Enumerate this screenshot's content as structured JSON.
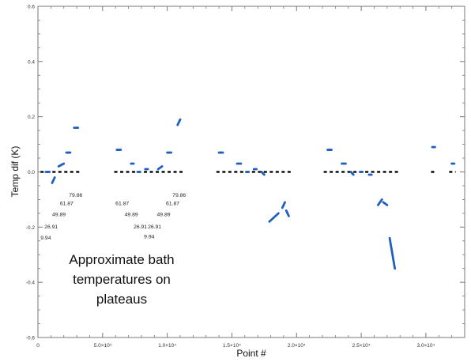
{
  "chart_data": {
    "type": "scatter",
    "title": "",
    "xlabel": "Point #",
    "ylabel": "Temp dif (K)",
    "xlim": [
      0,
      33000
    ],
    "ylim": [
      -0.6,
      0.6
    ],
    "x_ticks": [
      {
        "value": 0,
        "label": "0"
      },
      {
        "value": 5000,
        "label": "5.0×10³"
      },
      {
        "value": 10000,
        "label": "1.0×10⁴"
      },
      {
        "value": 15000,
        "label": "1.5×10⁴"
      },
      {
        "value": 20000,
        "label": "2.0×10⁴"
      },
      {
        "value": 25000,
        "label": "2.5×10⁴"
      },
      {
        "value": 30000,
        "label": "3.0×10⁴"
      }
    ],
    "y_ticks": [
      {
        "value": -0.6,
        "label": "-0.6"
      },
      {
        "value": -0.4,
        "label": "-0.4"
      },
      {
        "value": -0.2,
        "label": "-0.2"
      },
      {
        "value": 0.0,
        "label": "0.0"
      },
      {
        "value": 0.2,
        "label": "0.2"
      },
      {
        "value": 0.4,
        "label": "0.4"
      },
      {
        "value": 0.6,
        "label": "0.6"
      }
    ],
    "grid": false,
    "colors": {
      "blue": "#1f5fbf",
      "black": "#111111",
      "axis": "#777777"
    },
    "series": [
      {
        "color": "#1f5fbf",
        "segments": [
          [
            [
              600,
              0.0
            ],
            [
              900,
              0.0
            ]
          ],
          [
            [
              1100,
              -0.04
            ],
            [
              1300,
              -0.02
            ]
          ],
          [
            [
              1600,
              0.02
            ],
            [
              2000,
              0.03
            ]
          ],
          [
            [
              2200,
              0.07
            ],
            [
              2500,
              0.07
            ]
          ],
          [
            [
              2800,
              0.16
            ],
            [
              3100,
              0.16
            ]
          ],
          [
            [
              6100,
              0.08
            ],
            [
              6400,
              0.08
            ]
          ],
          [
            [
              7200,
              0.03
            ],
            [
              7400,
              0.03
            ]
          ],
          [
            [
              7700,
              0.0
            ],
            [
              7900,
              0.0
            ]
          ],
          [
            [
              8300,
              0.01
            ],
            [
              8500,
              0.01
            ]
          ],
          [
            [
              9300,
              0.01
            ],
            [
              9600,
              0.02
            ]
          ],
          [
            [
              10000,
              0.07
            ],
            [
              10300,
              0.07
            ]
          ],
          [
            [
              10800,
              0.17
            ],
            [
              11000,
              0.19
            ]
          ],
          [
            [
              14000,
              0.07
            ],
            [
              14300,
              0.07
            ]
          ],
          [
            [
              15400,
              0.03
            ],
            [
              15700,
              0.03
            ]
          ],
          [
            [
              16100,
              0.0
            ],
            [
              16300,
              0.0
            ]
          ],
          [
            [
              16700,
              0.01
            ],
            [
              16900,
              0.01
            ]
          ],
          [
            [
              17300,
              0.0
            ],
            [
              17500,
              -0.01
            ]
          ],
          [
            [
              17900,
              -0.18
            ],
            [
              18600,
              -0.15
            ]
          ],
          [
            [
              18900,
              -0.13
            ],
            [
              19100,
              -0.11
            ]
          ],
          [
            [
              19200,
              -0.14
            ],
            [
              19400,
              -0.16
            ]
          ],
          [
            [
              22400,
              0.08
            ],
            [
              22700,
              0.08
            ]
          ],
          [
            [
              23500,
              0.03
            ],
            [
              23800,
              0.03
            ]
          ],
          [
            [
              24200,
              0.0
            ],
            [
              24400,
              -0.01
            ]
          ],
          [
            [
              24900,
              0.0
            ],
            [
              25100,
              0.0
            ]
          ],
          [
            [
              25600,
              -0.01
            ],
            [
              25800,
              -0.01
            ]
          ],
          [
            [
              26300,
              -0.12
            ],
            [
              26600,
              -0.1
            ]
          ],
          [
            [
              26700,
              -0.11
            ],
            [
              27000,
              -0.12
            ]
          ],
          [
            [
              27200,
              -0.24
            ],
            [
              27600,
              -0.35
            ]
          ],
          [
            [
              30500,
              0.09
            ],
            [
              30700,
              0.09
            ]
          ],
          [
            [
              32000,
              0.03
            ],
            [
              32200,
              0.03
            ]
          ]
        ]
      },
      {
        "color": "#111111",
        "segments": [
          [
            [
              200,
              0.0
            ],
            [
              3400,
              0.0
            ]
          ],
          [
            [
              5900,
              0.0
            ],
            [
              11300,
              0.0
            ]
          ],
          [
            [
              13800,
              0.0
            ],
            [
              19600,
              0.0
            ]
          ],
          [
            [
              22100,
              0.0
            ],
            [
              27900,
              0.0
            ]
          ],
          [
            [
              30400,
              0.0
            ],
            [
              30800,
              0.0
            ]
          ],
          [
            [
              31800,
              0.0
            ],
            [
              32300,
              0.0
            ]
          ]
        ]
      }
    ],
    "annotations": [
      {
        "text": "79.86",
        "x": 2400,
        "y": -0.09
      },
      {
        "text": "61.87",
        "x": 1700,
        "y": -0.12
      },
      {
        "text": "49.89",
        "x": 1100,
        "y": -0.16
      },
      {
        "text": "26.91",
        "x": 500,
        "y": -0.205
      },
      {
        "text": "9.94",
        "x": 200,
        "y": -0.245
      },
      {
        "text": "61.87",
        "x": 6000,
        "y": -0.12
      },
      {
        "text": "49.89",
        "x": 6700,
        "y": -0.16
      },
      {
        "text": "26.91",
        "x": 7400,
        "y": -0.205
      },
      {
        "text": "26.91",
        "x": 8500,
        "y": -0.205
      },
      {
        "text": "9.94",
        "x": 8200,
        "y": -0.24
      },
      {
        "text": "49.89",
        "x": 9200,
        "y": -0.16
      },
      {
        "text": "61.87",
        "x": 9900,
        "y": -0.12
      },
      {
        "text": "79.86",
        "x": 10400,
        "y": -0.09
      }
    ],
    "note_lines": [
      "Approximate bath",
      "temperatures on",
      "plateaus"
    ]
  }
}
